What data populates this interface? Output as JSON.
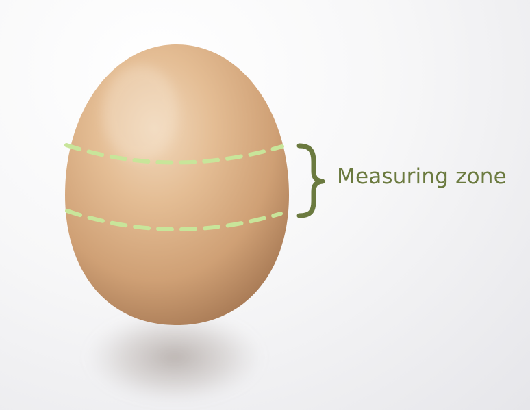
{
  "annotation": {
    "label": "Measuring zone",
    "text_color": "#6b7a3f",
    "brace_color": "#6b7a3f",
    "line_color": "#c8e59a"
  },
  "egg": {
    "shell_color": "#dcb58d",
    "highlight_color": "#f2dcc2",
    "shadow_color": "#a7998f"
  }
}
